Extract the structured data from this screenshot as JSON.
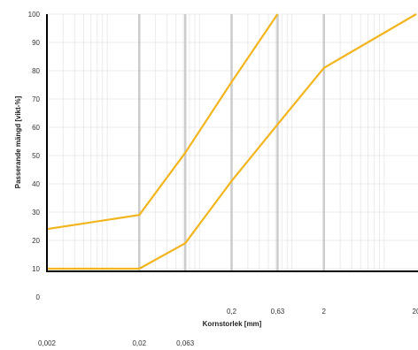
{
  "chart_data": {
    "type": "line",
    "xlabel": "Kornstorlek [mm]",
    "ylabel": "Passerande mängd [vikt-%]",
    "x_scale": "log",
    "xlim": [
      0.002,
      20
    ],
    "ylim": [
      0,
      100
    ],
    "grid": true,
    "y_tick_labels": [
      "0",
      "10",
      "20",
      "30",
      "40",
      "50",
      "60",
      "70",
      "80",
      "90",
      "100"
    ],
    "x_tick_labels_upper": [
      "0,2",
      "0,63",
      "2",
      "20"
    ],
    "x_tick_labels_lower": [
      "0,002",
      "0,02",
      "0,063"
    ],
    "line_color": "#f2b51d",
    "series": [
      {
        "x": [
          0.002,
          0.02,
          0.063,
          0.2,
          0.63
        ],
        "values": [
          24,
          29,
          51,
          76,
          100
        ]
      },
      {
        "x": [
          0.002,
          0.02,
          0.063,
          0.2,
          0.63,
          2,
          20
        ],
        "values": [
          10,
          10,
          19,
          41,
          61,
          81,
          100
        ]
      }
    ]
  }
}
